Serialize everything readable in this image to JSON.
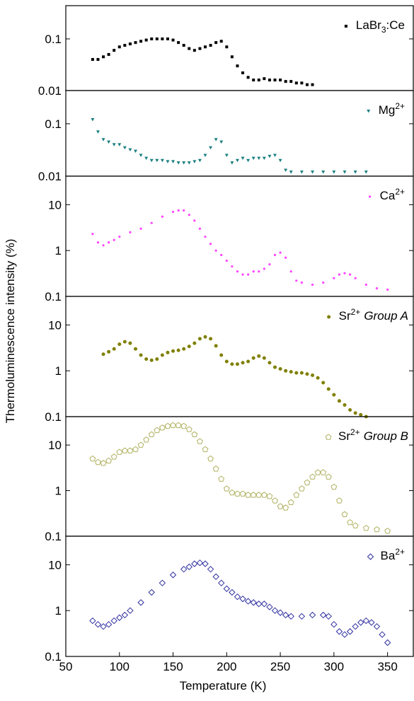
{
  "chart_data": {
    "type": "scatter",
    "xlabel": "Temperature (K)",
    "ylabel": "Thermoluminescence intensity (%)",
    "xlim": [
      50,
      374
    ],
    "xticks": [
      50,
      100,
      150,
      200,
      250,
      300,
      350
    ],
    "yscale": "log",
    "series": [
      {
        "legend_label": [
          {
            "text": "LaBr"
          },
          {
            "text": "3",
            "style": "sub"
          },
          {
            "text": ":Ce"
          }
        ],
        "color": "#000000",
        "marker": "square",
        "ylim": [
          0.01,
          0.44
        ],
        "yticks": [
          0.01,
          0.1
        ],
        "x": [
          75,
          80,
          85,
          90,
          95,
          100,
          105,
          110,
          115,
          120,
          125,
          130,
          135,
          140,
          145,
          150,
          155,
          160,
          165,
          170,
          175,
          180,
          185,
          190,
          195,
          200,
          205,
          210,
          215,
          220,
          225,
          230,
          235,
          240,
          245,
          250,
          255,
          260,
          265,
          270,
          275,
          280
        ],
        "values": [
          0.04,
          0.04,
          0.045,
          0.05,
          0.06,
          0.07,
          0.075,
          0.08,
          0.085,
          0.09,
          0.095,
          0.1,
          0.1,
          0.1,
          0.1,
          0.095,
          0.085,
          0.075,
          0.065,
          0.06,
          0.065,
          0.07,
          0.075,
          0.085,
          0.09,
          0.07,
          0.045,
          0.03,
          0.022,
          0.018,
          0.016,
          0.016,
          0.017,
          0.016,
          0.016,
          0.016,
          0.015,
          0.015,
          0.014,
          0.014,
          0.013,
          0.013
        ]
      },
      {
        "legend_label": [
          {
            "text": "Mg"
          },
          {
            "text": "2+",
            "style": "sup"
          }
        ],
        "color": "#1a7f7f",
        "marker": "triangle-down",
        "ylim": [
          0.01,
          0.43
        ],
        "yticks": [
          0.01,
          0.1
        ],
        "x": [
          75,
          80,
          85,
          90,
          95,
          100,
          105,
          110,
          115,
          120,
          125,
          130,
          135,
          140,
          145,
          150,
          155,
          160,
          165,
          170,
          175,
          180,
          185,
          190,
          195,
          200,
          205,
          210,
          215,
          220,
          225,
          230,
          235,
          240,
          245,
          250,
          255,
          260,
          270,
          280,
          290,
          300,
          310,
          320,
          330
        ],
        "values": [
          0.12,
          0.07,
          0.05,
          0.045,
          0.04,
          0.04,
          0.035,
          0.032,
          0.03,
          0.025,
          0.022,
          0.02,
          0.02,
          0.02,
          0.019,
          0.019,
          0.018,
          0.018,
          0.018,
          0.019,
          0.02,
          0.025,
          0.035,
          0.05,
          0.045,
          0.025,
          0.018,
          0.02,
          0.022,
          0.02,
          0.022,
          0.022,
          0.022,
          0.024,
          0.025,
          0.02,
          0.013,
          0.012,
          0.012,
          0.012,
          0.012,
          0.012,
          0.012,
          0.012,
          0.012
        ]
      },
      {
        "legend_label": [
          {
            "text": "Ca"
          },
          {
            "text": "2+",
            "style": "sup"
          }
        ],
        "color": "#ff44ff",
        "marker": "dot",
        "ylim": [
          0.1,
          42
        ],
        "yticks": [
          0.1,
          1,
          10
        ],
        "x": [
          75,
          80,
          85,
          90,
          95,
          100,
          110,
          120,
          130,
          140,
          150,
          155,
          160,
          165,
          170,
          175,
          180,
          185,
          190,
          195,
          200,
          205,
          210,
          215,
          220,
          225,
          230,
          235,
          240,
          245,
          250,
          255,
          260,
          265,
          270,
          280,
          290,
          300,
          305,
          310,
          315,
          320,
          330,
          340,
          350
        ],
        "values": [
          2.3,
          1.5,
          1.3,
          1.5,
          1.7,
          2,
          2.5,
          3,
          4,
          5.5,
          7,
          7.5,
          7.5,
          6,
          4.5,
          3,
          2,
          1.4,
          1,
          0.8,
          0.6,
          0.45,
          0.35,
          0.3,
          0.3,
          0.35,
          0.35,
          0.4,
          0.5,
          0.8,
          0.9,
          0.7,
          0.35,
          0.22,
          0.2,
          0.18,
          0.2,
          0.25,
          0.3,
          0.32,
          0.3,
          0.25,
          0.18,
          0.15,
          0.14
        ]
      },
      {
        "legend_label": [
          {
            "text": "Sr"
          },
          {
            "text": "2+",
            "style": "sup"
          },
          {
            "text": "Group A",
            "style": "italic"
          }
        ],
        "color": "#808000",
        "marker": "circle",
        "ylim": [
          0.1,
          42
        ],
        "yticks": [
          0.1,
          1,
          10
        ],
        "x": [
          85,
          90,
          95,
          100,
          105,
          110,
          115,
          120,
          125,
          130,
          135,
          140,
          145,
          150,
          155,
          160,
          165,
          170,
          175,
          180,
          185,
          190,
          195,
          200,
          205,
          210,
          215,
          220,
          225,
          230,
          235,
          240,
          245,
          250,
          255,
          260,
          265,
          270,
          275,
          280,
          285,
          290,
          295,
          300,
          305,
          310,
          315,
          320,
          325,
          330
        ],
        "values": [
          2.3,
          2.6,
          3,
          3.8,
          4.3,
          4,
          3,
          2.2,
          1.8,
          1.7,
          1.8,
          2.2,
          2.5,
          2.7,
          2.8,
          3,
          3.4,
          4,
          5,
          5.5,
          5,
          3.5,
          2.2,
          1.6,
          1.4,
          1.4,
          1.5,
          1.6,
          1.9,
          2.1,
          1.9,
          1.5,
          1.2,
          1.1,
          1,
          0.95,
          0.9,
          0.9,
          0.85,
          0.8,
          0.7,
          0.55,
          0.4,
          0.3,
          0.22,
          0.18,
          0.14,
          0.12,
          0.11,
          0.1
        ]
      },
      {
        "legend_label": [
          {
            "text": "Sr"
          },
          {
            "text": "2+",
            "style": "sup"
          },
          {
            "text": "Group B",
            "style": "italic"
          }
        ],
        "color": "#b0b060",
        "marker": "pentagon",
        "ylim": [
          0.1,
          42
        ],
        "yticks": [
          0.1,
          1,
          10
        ],
        "x": [
          75,
          80,
          85,
          90,
          95,
          100,
          105,
          110,
          115,
          120,
          125,
          130,
          135,
          140,
          145,
          150,
          155,
          160,
          165,
          170,
          175,
          180,
          185,
          190,
          195,
          200,
          205,
          210,
          215,
          220,
          225,
          230,
          235,
          240,
          245,
          250,
          255,
          260,
          265,
          270,
          275,
          280,
          285,
          290,
          295,
          300,
          305,
          310,
          315,
          320,
          330,
          340,
          350
        ],
        "values": [
          5,
          4.2,
          4,
          4.5,
          5.5,
          7,
          7.5,
          7.5,
          8,
          10,
          13,
          17,
          21,
          24,
          26,
          27,
          27,
          26,
          22,
          17,
          12,
          8,
          5,
          3,
          1.8,
          1.1,
          0.9,
          0.85,
          0.85,
          0.8,
          0.8,
          0.8,
          0.8,
          0.75,
          0.6,
          0.45,
          0.42,
          0.55,
          0.8,
          1.1,
          1.5,
          2,
          2.5,
          2.5,
          2,
          1.2,
          0.6,
          0.3,
          0.2,
          0.17,
          0.15,
          0.14,
          0.13
        ]
      },
      {
        "legend_label": [
          {
            "text": "Ba"
          },
          {
            "text": "2+",
            "style": "sup"
          }
        ],
        "color": "#3030a0",
        "marker": "diamond",
        "ylim": [
          0.1,
          42
        ],
        "yticks": [
          0.1,
          1,
          10
        ],
        "x": [
          75,
          80,
          85,
          90,
          95,
          100,
          105,
          110,
          120,
          130,
          140,
          150,
          160,
          165,
          170,
          175,
          180,
          185,
          190,
          195,
          200,
          205,
          210,
          215,
          220,
          225,
          230,
          235,
          240,
          245,
          250,
          255,
          260,
          270,
          280,
          290,
          295,
          300,
          305,
          310,
          315,
          320,
          325,
          330,
          335,
          340,
          345,
          350
        ],
        "values": [
          0.6,
          0.5,
          0.45,
          0.5,
          0.6,
          0.7,
          0.8,
          1,
          1.5,
          2.5,
          4,
          6,
          8,
          9,
          10.5,
          11,
          10.5,
          8,
          5.5,
          4,
          3,
          2.5,
          2,
          1.8,
          1.6,
          1.5,
          1.4,
          1.4,
          1.2,
          1,
          0.9,
          0.8,
          0.75,
          0.75,
          0.8,
          0.8,
          0.75,
          0.5,
          0.35,
          0.3,
          0.35,
          0.45,
          0.55,
          0.6,
          0.55,
          0.45,
          0.3,
          0.2
        ]
      }
    ]
  }
}
